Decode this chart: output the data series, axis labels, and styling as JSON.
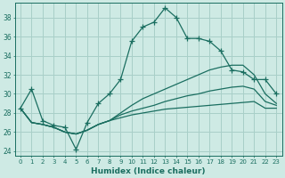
{
  "title": "",
  "xlabel": "Humidex (Indice chaleur)",
  "ylabel": "",
  "background_color": "#ceeae4",
  "grid_color": "#a8cfc8",
  "line_color": "#1a6e60",
  "xlim": [
    -0.5,
    23.5
  ],
  "ylim": [
    23.5,
    39.5
  ],
  "xticks": [
    0,
    1,
    2,
    3,
    4,
    5,
    6,
    7,
    8,
    9,
    10,
    11,
    12,
    13,
    14,
    15,
    16,
    17,
    18,
    19,
    20,
    21,
    22,
    23
  ],
  "yticks": [
    24,
    26,
    28,
    30,
    32,
    34,
    36,
    38
  ],
  "series1_x": [
    0,
    1,
    2,
    3,
    4,
    5,
    6,
    7,
    8,
    9,
    10,
    11,
    12,
    13,
    14,
    15,
    16,
    17,
    18,
    19,
    20,
    21,
    22,
    23
  ],
  "series1_y": [
    28.5,
    30.5,
    27.2,
    26.7,
    26.5,
    24.2,
    27.0,
    29.0,
    30.0,
    31.5,
    35.5,
    37.0,
    37.5,
    39.0,
    38.0,
    35.8,
    35.8,
    35.5,
    34.5,
    32.5,
    32.3,
    31.5,
    31.5,
    30.0
  ],
  "series2_x": [
    0,
    1,
    2,
    3,
    4,
    5,
    6,
    7,
    8,
    9,
    10,
    11,
    12,
    13,
    14,
    15,
    16,
    17,
    18,
    19,
    20,
    21,
    22,
    23
  ],
  "series2_y": [
    28.5,
    27.0,
    26.8,
    26.5,
    26.0,
    25.8,
    26.2,
    26.8,
    27.2,
    28.0,
    28.8,
    29.5,
    30.0,
    30.5,
    31.0,
    31.5,
    32.0,
    32.5,
    32.8,
    33.0,
    33.0,
    32.0,
    30.0,
    29.0
  ],
  "series3_x": [
    0,
    1,
    2,
    3,
    4,
    5,
    6,
    7,
    8,
    9,
    10,
    11,
    12,
    13,
    14,
    15,
    16,
    17,
    18,
    19,
    20,
    21,
    22,
    23
  ],
  "series3_y": [
    28.5,
    27.0,
    26.8,
    26.5,
    26.0,
    25.8,
    26.2,
    26.8,
    27.2,
    27.8,
    28.2,
    28.5,
    28.8,
    29.2,
    29.5,
    29.8,
    30.0,
    30.3,
    30.5,
    30.7,
    30.8,
    30.5,
    29.2,
    28.8
  ],
  "series4_x": [
    0,
    1,
    2,
    3,
    4,
    5,
    6,
    7,
    8,
    9,
    10,
    11,
    12,
    13,
    14,
    15,
    16,
    17,
    18,
    19,
    20,
    21,
    22,
    23
  ],
  "series4_y": [
    28.5,
    27.0,
    26.8,
    26.5,
    26.0,
    25.8,
    26.2,
    26.8,
    27.2,
    27.5,
    27.8,
    28.0,
    28.2,
    28.4,
    28.5,
    28.6,
    28.7,
    28.8,
    28.9,
    29.0,
    29.1,
    29.2,
    28.5,
    28.5
  ]
}
